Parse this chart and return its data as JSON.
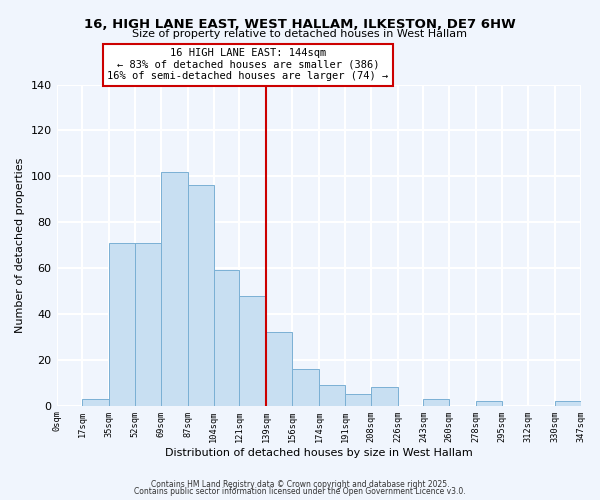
{
  "title": "16, HIGH LANE EAST, WEST HALLAM, ILKESTON, DE7 6HW",
  "subtitle": "Size of property relative to detached houses in West Hallam",
  "xlabel": "Distribution of detached houses by size in West Hallam",
  "ylabel": "Number of detached properties",
  "bar_color": "#c8dff2",
  "bar_edgecolor": "#7ab0d4",
  "bin_edges": [
    0,
    17,
    35,
    52,
    69,
    87,
    104,
    121,
    139,
    156,
    174,
    191,
    208,
    226,
    243,
    260,
    278,
    295,
    312,
    330,
    347
  ],
  "bar_heights": [
    0,
    3,
    71,
    71,
    102,
    96,
    59,
    48,
    32,
    16,
    9,
    5,
    8,
    0,
    3,
    0,
    2,
    0,
    0,
    2
  ],
  "tick_labels": [
    "0sqm",
    "17sqm",
    "35sqm",
    "52sqm",
    "69sqm",
    "87sqm",
    "104sqm",
    "121sqm",
    "139sqm",
    "156sqm",
    "174sqm",
    "191sqm",
    "208sqm",
    "226sqm",
    "243sqm",
    "260sqm",
    "278sqm",
    "295sqm",
    "312sqm",
    "330sqm",
    "347sqm"
  ],
  "vline_x": 139,
  "vline_color": "#cc0000",
  "annotation_title": "16 HIGH LANE EAST: 144sqm",
  "annotation_line1": "← 83% of detached houses are smaller (386)",
  "annotation_line2": "16% of semi-detached houses are larger (74) →",
  "annotation_box_edgecolor": "#cc0000",
  "ylim": [
    0,
    140
  ],
  "yticks": [
    0,
    20,
    40,
    60,
    80,
    100,
    120,
    140
  ],
  "footer1": "Contains HM Land Registry data © Crown copyright and database right 2025.",
  "footer2": "Contains public sector information licensed under the Open Government Licence v3.0.",
  "background_color": "#f0f5fd",
  "grid_color": "#ffffff"
}
